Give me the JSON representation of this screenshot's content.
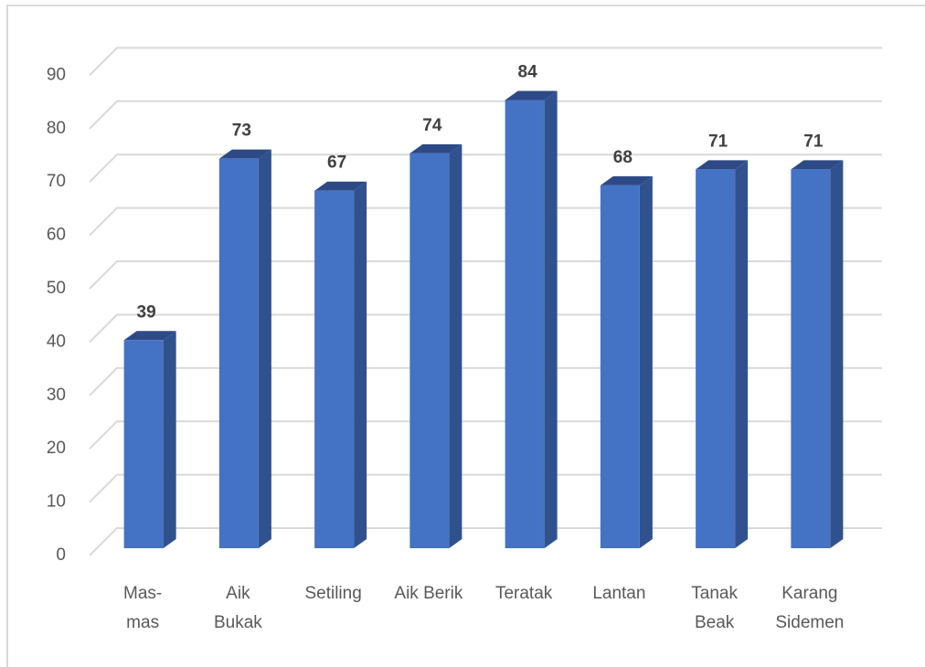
{
  "chart_data": {
    "type": "bar3d",
    "categories": [
      "Mas-\nmas",
      "Aik\nBukak",
      "Setiling",
      "Aik Berik",
      "Teratak",
      "Lantan",
      "Tanak\nBeak",
      "Karang\nSidemen"
    ],
    "values": [
      39,
      73,
      67,
      74,
      84,
      68,
      71,
      71
    ],
    "color": "#4472c4",
    "ylim": [
      0,
      90
    ],
    "yticks": [
      0,
      10,
      20,
      30,
      40,
      50,
      60,
      70,
      80,
      90
    ],
    "grid": true
  }
}
